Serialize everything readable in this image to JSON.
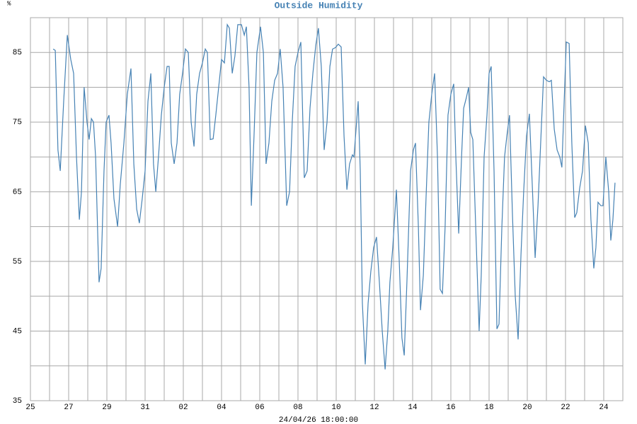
{
  "chart_data": {
    "type": "line",
    "title": "Outside Humidity",
    "y_unit": "%",
    "xlabel": "24/04/26 18:00:00",
    "color": "#4682b4",
    "grid": true,
    "xlim": [
      0,
      31
    ],
    "xticks": [
      {
        "value": 0,
        "label": "25"
      },
      {
        "value": 2,
        "label": "27"
      },
      {
        "value": 4,
        "label": "29"
      },
      {
        "value": 6,
        "label": "31"
      },
      {
        "value": 8,
        "label": "02"
      },
      {
        "value": 10,
        "label": "04"
      },
      {
        "value": 12,
        "label": "06"
      },
      {
        "value": 14,
        "label": "08"
      },
      {
        "value": 16,
        "label": "10"
      },
      {
        "value": 18,
        "label": "12"
      },
      {
        "value": 20,
        "label": "14"
      },
      {
        "value": 22,
        "label": "16"
      },
      {
        "value": 24,
        "label": "18"
      },
      {
        "value": 26,
        "label": "20"
      },
      {
        "value": 28,
        "label": "22"
      },
      {
        "value": 30,
        "label": "24"
      }
    ],
    "xminor": [
      1,
      3,
      5,
      7,
      9,
      11,
      13,
      15,
      17,
      19,
      21,
      23,
      25,
      27,
      29
    ],
    "ylim": [
      35,
      90
    ],
    "yticks": [
      35,
      45,
      55,
      65,
      75,
      85
    ],
    "yminor": [
      40,
      50,
      60,
      70,
      80
    ],
    "x": [
      1.19,
      1.3,
      1.44,
      1.56,
      1.74,
      1.93,
      2.11,
      2.26,
      2.41,
      2.56,
      2.67,
      2.81,
      2.96,
      3.07,
      3.19,
      3.3,
      3.41,
      3.59,
      3.7,
      3.85,
      3.96,
      4.11,
      4.22,
      4.37,
      4.56,
      4.7,
      4.89,
      5.07,
      5.26,
      5.41,
      5.56,
      5.7,
      5.85,
      6.0,
      6.15,
      6.3,
      6.44,
      6.56,
      6.7,
      6.85,
      7.0,
      7.15,
      7.26,
      7.37,
      7.52,
      7.67,
      7.81,
      7.96,
      8.11,
      8.26,
      8.41,
      8.56,
      8.7,
      8.85,
      9.0,
      9.15,
      9.26,
      9.41,
      9.56,
      9.7,
      9.85,
      10.0,
      10.15,
      10.3,
      10.41,
      10.56,
      10.7,
      10.85,
      11.04,
      11.19,
      11.3,
      11.44,
      11.56,
      11.7,
      11.85,
      12.04,
      12.19,
      12.33,
      12.48,
      12.63,
      12.78,
      12.93,
      13.07,
      13.22,
      13.41,
      13.56,
      13.7,
      13.85,
      14.0,
      14.15,
      14.33,
      14.48,
      14.63,
      14.78,
      14.93,
      15.07,
      15.22,
      15.37,
      15.52,
      15.67,
      15.81,
      15.96,
      16.11,
      16.26,
      16.41,
      16.56,
      16.7,
      16.85,
      16.93,
      17.04,
      17.15,
      17.26,
      17.37,
      17.52,
      17.67,
      17.81,
      17.96,
      18.11,
      18.26,
      18.41,
      18.56,
      18.7,
      18.81,
      18.96,
      19.15,
      19.3,
      19.44,
      19.56,
      19.7,
      19.89,
      20.04,
      20.15,
      20.3,
      20.41,
      20.56,
      20.7,
      20.85,
      21.0,
      21.15,
      21.3,
      21.44,
      21.56,
      21.7,
      21.85,
      22.0,
      22.15,
      22.26,
      22.41,
      22.56,
      22.67,
      22.81,
      22.93,
      23.04,
      23.15,
      23.3,
      23.48,
      23.59,
      23.74,
      23.89,
      24.0,
      24.11,
      24.26,
      24.41,
      24.52,
      24.67,
      24.81,
      24.93,
      25.07,
      25.22,
      25.37,
      25.52,
      25.67,
      25.81,
      25.96,
      26.11,
      26.26,
      26.41,
      26.56,
      26.7,
      26.85,
      27.0,
      27.15,
      27.26,
      27.41,
      27.56,
      27.7,
      27.81,
      27.93,
      28.04,
      28.19,
      28.33,
      28.48,
      28.59,
      28.74,
      28.89,
      29.04,
      29.19,
      29.33,
      29.48,
      29.59,
      29.7,
      29.85,
      29.96,
      30.11,
      30.26,
      30.37,
      30.48,
      30.59
    ],
    "values": [
      85.5,
      85.3,
      71,
      68,
      78,
      87.5,
      84,
      82,
      70,
      61,
      65,
      80,
      75,
      72.5,
      75.5,
      75,
      70,
      52,
      54,
      68,
      75,
      76,
      72,
      64,
      60,
      66,
      72,
      79,
      82.7,
      69,
      62.5,
      60.5,
      64,
      68,
      78,
      82,
      69,
      65,
      70,
      76,
      80,
      83,
      83,
      72,
      69,
      72,
      79,
      82,
      85.5,
      85,
      75,
      71.5,
      79,
      82,
      83.5,
      85.5,
      85,
      72.5,
      72.6,
      76,
      80,
      84,
      83.5,
      89,
      88.5,
      82,
      84.5,
      89,
      89,
      87.5,
      88.7,
      80,
      63,
      73,
      85,
      88.7,
      85,
      69,
      72,
      78,
      81,
      82,
      85.5,
      80,
      63,
      65,
      75,
      83,
      85,
      86.5,
      67,
      68,
      77,
      82,
      86,
      88.5,
      83,
      71,
      75,
      83,
      85.5,
      85.7,
      86.2,
      85.8,
      73,
      65.3,
      69,
      70.3,
      70,
      74,
      78,
      68,
      49,
      40.2,
      49,
      53.5,
      57,
      58.5,
      52,
      45,
      39.5,
      45,
      52,
      57,
      65.3,
      55,
      44,
      41.5,
      52,
      68,
      71,
      72,
      60,
      48,
      53,
      64,
      75,
      79,
      82,
      70,
      51,
      50.4,
      60,
      76,
      79,
      80.5,
      70,
      59,
      70,
      77,
      78.5,
      80,
      73.5,
      72.5,
      60,
      45,
      53,
      70,
      76,
      82,
      83,
      68,
      45.3,
      46,
      60,
      70,
      73,
      76,
      62,
      50,
      43.8,
      56,
      65,
      73,
      76.2,
      66,
      55.5,
      63,
      72,
      81.5,
      81,
      80.8,
      81,
      74,
      71,
      70,
      68.5,
      78,
      86.5,
      86.3,
      72,
      61.3,
      62,
      65.5,
      68,
      74.5,
      72,
      61,
      54,
      57,
      63.5,
      63,
      63,
      70,
      65,
      58,
      61,
      66.3
    ]
  }
}
